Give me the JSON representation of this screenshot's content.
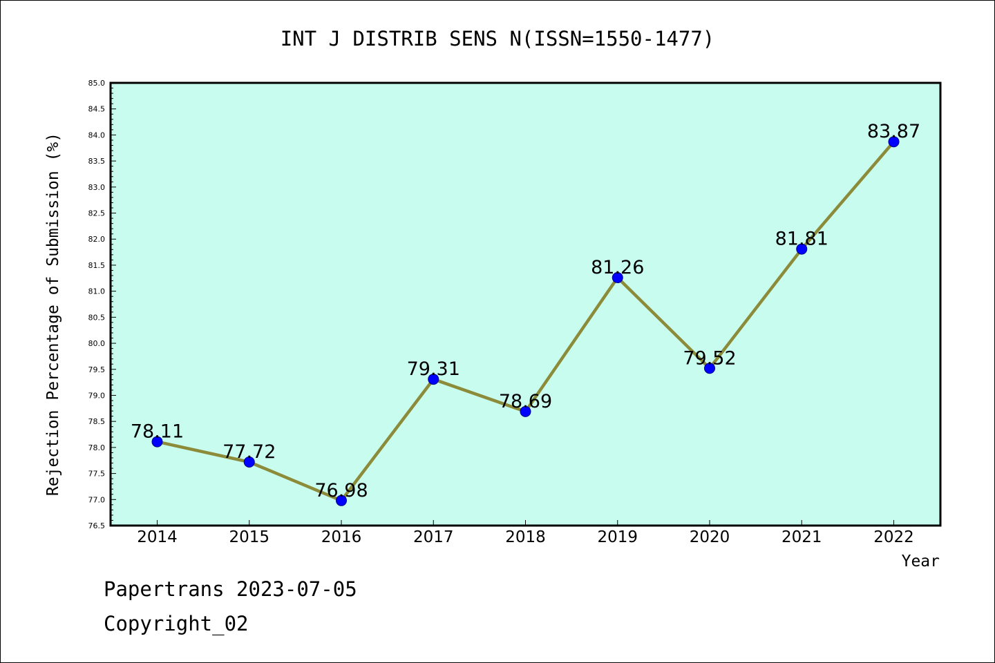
{
  "chart_data": {
    "type": "line",
    "title": "INT J DISTRIB SENS N(ISSN=1550-1477)",
    "xlabel": "Year",
    "ylabel": "Rejection Percentage of Submission (%)",
    "categories": [
      "2014",
      "2015",
      "2016",
      "2017",
      "2018",
      "2019",
      "2020",
      "2021",
      "2022"
    ],
    "values": [
      78.11,
      77.72,
      76.98,
      79.31,
      78.69,
      81.26,
      79.52,
      81.81,
      83.87
    ],
    "data_labels": [
      "78.11",
      "77.72",
      "76.98",
      "79.31",
      "78.69",
      "81.26",
      "79.52",
      "81.81",
      "83.87"
    ],
    "ylim": [
      76.5,
      85.0
    ],
    "yticks": [
      "76.5",
      "77.0",
      "77.5",
      "78.0",
      "78.5",
      "79.0",
      "79.5",
      "80.0",
      "80.5",
      "81.0",
      "81.5",
      "82.0",
      "82.5",
      "83.0",
      "83.5",
      "84.0",
      "84.5",
      "85.0"
    ],
    "grid": false,
    "colors": {
      "plot_background": "#c8fcee",
      "line": "#8b8b3a",
      "marker": "#0000ff"
    }
  },
  "footer": {
    "line1": "Papertrans 2023-07-05",
    "line2": "Copyright_02"
  }
}
